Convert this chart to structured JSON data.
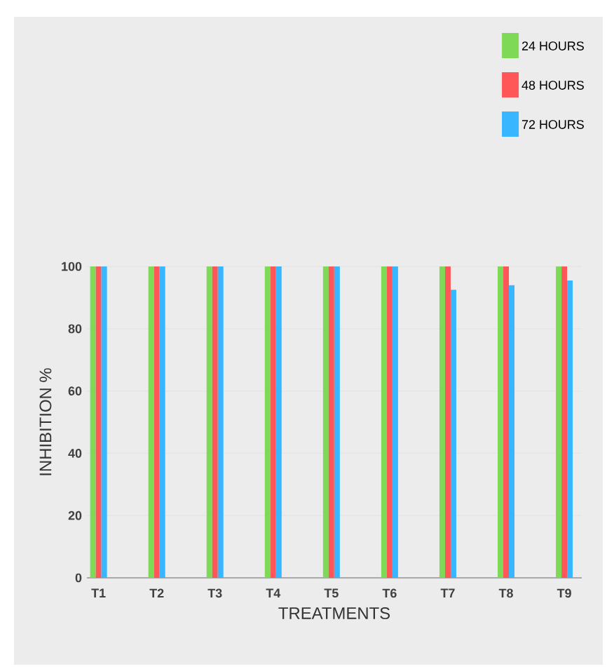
{
  "chart_data": {
    "type": "bar",
    "xlabel": "TREATMENTS",
    "ylabel": "INHIBITION %",
    "categories": [
      "T1",
      "T2",
      "T3",
      "T4",
      "T5",
      "T6",
      "T7",
      "T8",
      "T9"
    ],
    "series": [
      {
        "name": "24 HOURS",
        "color": "#7ed957",
        "values": [
          100,
          100,
          100,
          100,
          100,
          100,
          100,
          100,
          100
        ]
      },
      {
        "name": "48 HOURS",
        "color": "#ff5757",
        "values": [
          100,
          100,
          100,
          100,
          100,
          100,
          100,
          100,
          100
        ]
      },
      {
        "name": "72 HOURS",
        "color": "#38b6ff",
        "values": [
          100,
          100,
          100,
          100,
          100,
          100,
          92.5,
          94,
          95.5
        ]
      }
    ],
    "ylim": [
      0,
      100
    ],
    "yticks": [
      0,
      20,
      40,
      60,
      80,
      100
    ],
    "grid": "y",
    "legend": "top right"
  }
}
